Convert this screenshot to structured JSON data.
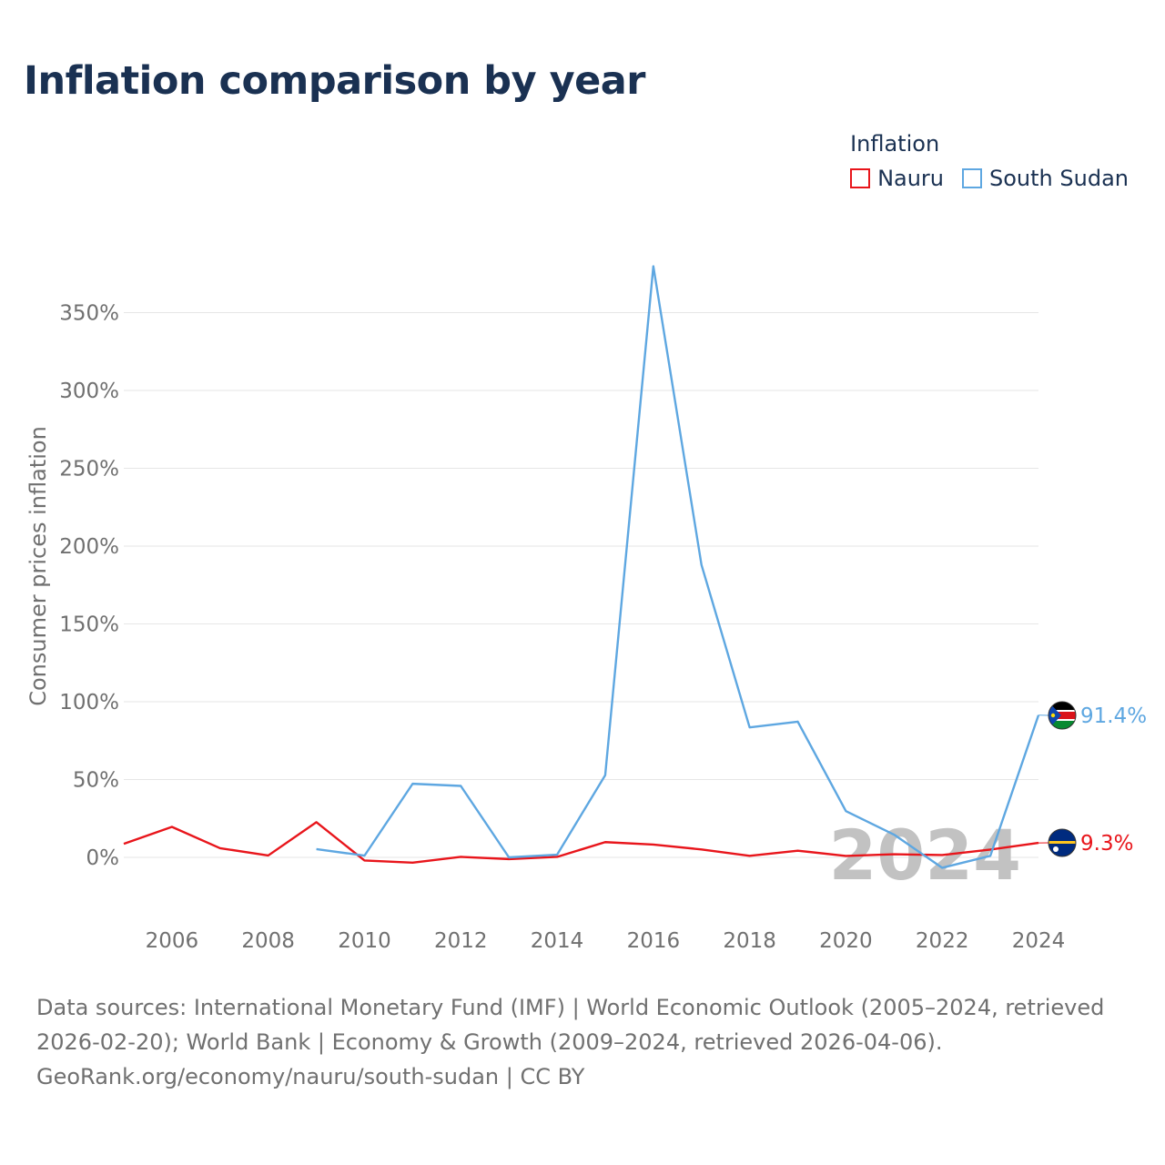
{
  "title": "Inflation comparison by year",
  "legend": {
    "title": "Inflation",
    "items": [
      {
        "name": "Nauru",
        "color": "#e8151b"
      },
      {
        "name": "South Sudan",
        "color": "#5ea7e1"
      }
    ]
  },
  "chart_data": {
    "type": "line",
    "title": "Inflation comparison by year",
    "xlabel": "",
    "ylabel": "Consumer prices inflation",
    "xlim": [
      2005,
      2024
    ],
    "ylim": [
      -35,
      400
    ],
    "y_ticks": [
      0,
      50,
      100,
      150,
      200,
      250,
      300,
      350
    ],
    "y_tick_labels": [
      "0%",
      "50%",
      "100%",
      "150%",
      "200%",
      "250%",
      "300%",
      "350%"
    ],
    "x_ticks": [
      2006,
      2008,
      2010,
      2012,
      2014,
      2016,
      2018,
      2020,
      2022,
      2024
    ],
    "x_tick_labels": [
      "2006",
      "2008",
      "2010",
      "2012",
      "2014",
      "2016",
      "2018",
      "2020",
      "2022",
      "2024"
    ],
    "grid": true,
    "year_watermark": "2024",
    "series": [
      {
        "name": "Nauru",
        "color": "#e8151b",
        "end_label": "9.3%",
        "x": [
          2005,
          2006,
          2007,
          2008,
          2009,
          2010,
          2011,
          2012,
          2013,
          2014,
          2015,
          2016,
          2017,
          2018,
          2019,
          2020,
          2021,
          2022,
          2023,
          2024
        ],
        "y": [
          8.7,
          19.6,
          5.9,
          1.2,
          22.6,
          -2.0,
          -3.4,
          0.3,
          -1.1,
          0.3,
          9.8,
          8.2,
          5.1,
          1.0,
          4.3,
          0.9,
          2.0,
          1.5,
          5.0,
          9.3
        ]
      },
      {
        "name": "South Sudan",
        "color": "#5ea7e1",
        "end_label": "91.4%",
        "x": [
          2009,
          2010,
          2011,
          2012,
          2013,
          2014,
          2015,
          2016,
          2017,
          2018,
          2019,
          2020,
          2021,
          2022,
          2023,
          2024
        ],
        "y": [
          5.3,
          1.1,
          47.3,
          45.9,
          0.0,
          1.7,
          52.8,
          379.8,
          187.9,
          83.5,
          87.2,
          29.7,
          14.6,
          -6.7,
          1.0,
          91.4
        ]
      }
    ]
  },
  "footer": {
    "line1": "Data sources: International Monetary Fund (IMF) | World Economic Outlook (2005–2024, retrieved 2026-02-20); World Bank | Economy & Growth (2009–2024, retrieved 2026-04-06).",
    "line2": "GeoRank.org/economy/nauru/south-sudan | CC BY"
  }
}
